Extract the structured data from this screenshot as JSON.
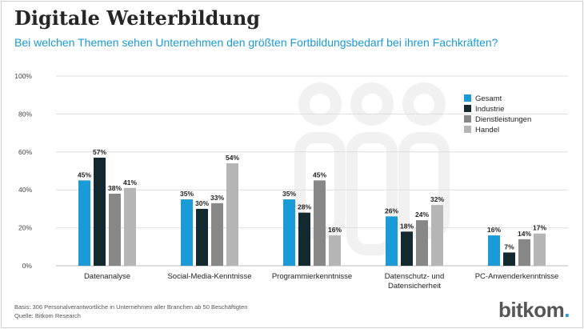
{
  "header": {
    "title": "Digitale Weiterbildung",
    "subtitle": "Bei welchen Themen sehen Unternehmen den größten Fortbildungsbedarf bei ihren Fachkräften?"
  },
  "footer": {
    "basis": "Basis: 306 Personalverantwortliche in Unternehmen aller Branchen ab 50 Beschäftigten",
    "source": "Quelle: Bitkom Research"
  },
  "brand": {
    "logo": "bitkom"
  },
  "chart_data": {
    "type": "bar",
    "categories": [
      "Datenanalyse",
      "Social-Media-Kenntnisse",
      "Programmierkenntnisse",
      "Datenschutz- und Datensicherheit",
      "PC-Anwenderkenntnisse"
    ],
    "category_lines": [
      [
        "Datenanalyse"
      ],
      [
        "Social-Media-Kenntnisse"
      ],
      [
        "Programmierkenntnisse"
      ],
      [
        "Datenschutz- und",
        "Datensicherheit"
      ],
      [
        "PC-Anwenderkenntnisse"
      ]
    ],
    "series": [
      {
        "name": "Gesamt",
        "color": "#1a9bd7",
        "values": [
          45,
          35,
          35,
          26,
          16
        ]
      },
      {
        "name": "Industrie",
        "color": "#13282f",
        "values": [
          57,
          30,
          28,
          18,
          7
        ]
      },
      {
        "name": "Dienstleistungen",
        "color": "#878787",
        "values": [
          38,
          33,
          45,
          24,
          14
        ]
      },
      {
        "name": "Handel",
        "color": "#b5b5b5",
        "values": [
          41,
          54,
          16,
          32,
          17
        ]
      }
    ],
    "ylim": [
      0,
      100
    ],
    "yticks": [
      "0%",
      "20%",
      "40%",
      "60%",
      "80%",
      "100%"
    ],
    "unit": "%",
    "grid": true,
    "legend_position": "top-right"
  }
}
